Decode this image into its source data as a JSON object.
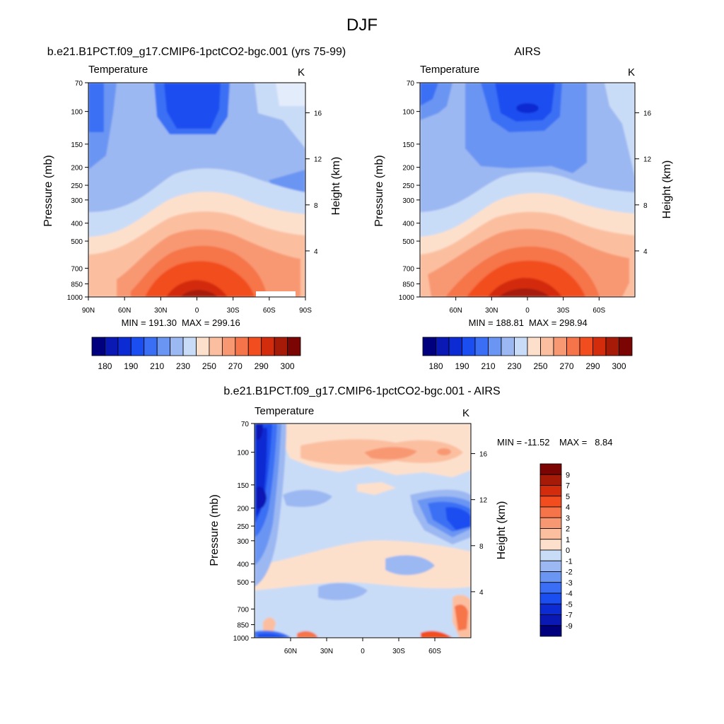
{
  "page": {
    "title": "DJF"
  },
  "chart_data": [
    {
      "type": "heatmap",
      "title": "b.e21.B1PCT.f09_g17.CMIP6-1pctCO2-bgc.001 (yrs 75-99)",
      "variable": "Temperature",
      "units": "K",
      "ylabel": "Pressure (mb)",
      "y2label": "Height (km)",
      "x_ticks": [
        "90N",
        "60N",
        "30N",
        "0",
        "30S",
        "60S",
        "90S"
      ],
      "y_ticks": [
        "70",
        "100",
        "150",
        "200",
        "250",
        "300",
        "400",
        "500",
        "700",
        "850",
        "1000"
      ],
      "y2_ticks": [
        "16",
        "12",
        "8",
        "4"
      ],
      "stats": {
        "min_label": "MIN = 191.30",
        "max_label": "MAX = 299.16",
        "min": 191.3,
        "max": 299.16
      },
      "colorbar": {
        "tick_labels": [
          "180",
          "190",
          "210",
          "230",
          "250",
          "270",
          "290",
          "300"
        ],
        "colors": [
          "#00007f",
          "#0a18b4",
          "#0c2bd2",
          "#1a4ef0",
          "#3a6ff5",
          "#6b95f3",
          "#9cb8f2",
          "#c9dcf7",
          "#fde0cc",
          "#fbbfa0",
          "#f89872",
          "#f6744a",
          "#f24d1f",
          "#d32c0d",
          "#a61a08",
          "#7a0503"
        ]
      }
    },
    {
      "type": "heatmap",
      "title": "AIRS",
      "variable": "Temperature",
      "units": "K",
      "ylabel": "Pressure (mb)",
      "y2label": "Height (km)",
      "x_ticks": [
        "60N",
        "30N",
        "0",
        "30S",
        "60S"
      ],
      "y_ticks": [
        "70",
        "100",
        "150",
        "200",
        "250",
        "300",
        "400",
        "500",
        "700",
        "850",
        "1000"
      ],
      "y2_ticks": [
        "16",
        "12",
        "8",
        "4"
      ],
      "stats": {
        "min_label": "MIN = 188.81",
        "max_label": "MAX = 298.94",
        "min": 188.81,
        "max": 298.94
      },
      "colorbar": {
        "tick_labels": [
          "180",
          "190",
          "210",
          "230",
          "250",
          "270",
          "290",
          "300"
        ],
        "colors": [
          "#00007f",
          "#0a18b4",
          "#0c2bd2",
          "#1a4ef0",
          "#3a6ff5",
          "#6b95f3",
          "#9cb8f2",
          "#c9dcf7",
          "#fde0cc",
          "#fbbfa0",
          "#f89872",
          "#f6744a",
          "#f24d1f",
          "#d32c0d",
          "#a61a08",
          "#7a0503"
        ]
      }
    },
    {
      "type": "heatmap",
      "title": "b.e21.B1PCT.f09_g17.CMIP6-1pctCO2-bgc.001 - AIRS",
      "variable": "Temperature",
      "units": "K",
      "ylabel": "Pressure (mb)",
      "y2label": "Height (km)",
      "x_ticks": [
        "60N",
        "30N",
        "0",
        "30S",
        "60S"
      ],
      "y_ticks": [
        "70",
        "100",
        "150",
        "200",
        "250",
        "300",
        "400",
        "500",
        "700",
        "850",
        "1000"
      ],
      "y2_ticks": [
        "16",
        "12",
        "8",
        "4"
      ],
      "stats": {
        "min_label": "MIN = -11.52",
        "max_label": "MAX =   8.84",
        "min": -11.52,
        "max": 8.84
      },
      "colorbar": {
        "tick_labels": [
          "9",
          "7",
          "5",
          "4",
          "3",
          "2",
          "1",
          "0",
          "-1",
          "-2",
          "-3",
          "-4",
          "-5",
          "-7",
          "-9"
        ],
        "colors": [
          "#7a0503",
          "#a61a08",
          "#d32c0d",
          "#f24d1f",
          "#f6744a",
          "#f89872",
          "#fbbfa0",
          "#fde0cc",
          "#c9dcf7",
          "#9cb8f2",
          "#6b95f3",
          "#3a6ff5",
          "#1a4ef0",
          "#0c2bd2",
          "#0a18b4",
          "#00007f"
        ]
      }
    }
  ]
}
